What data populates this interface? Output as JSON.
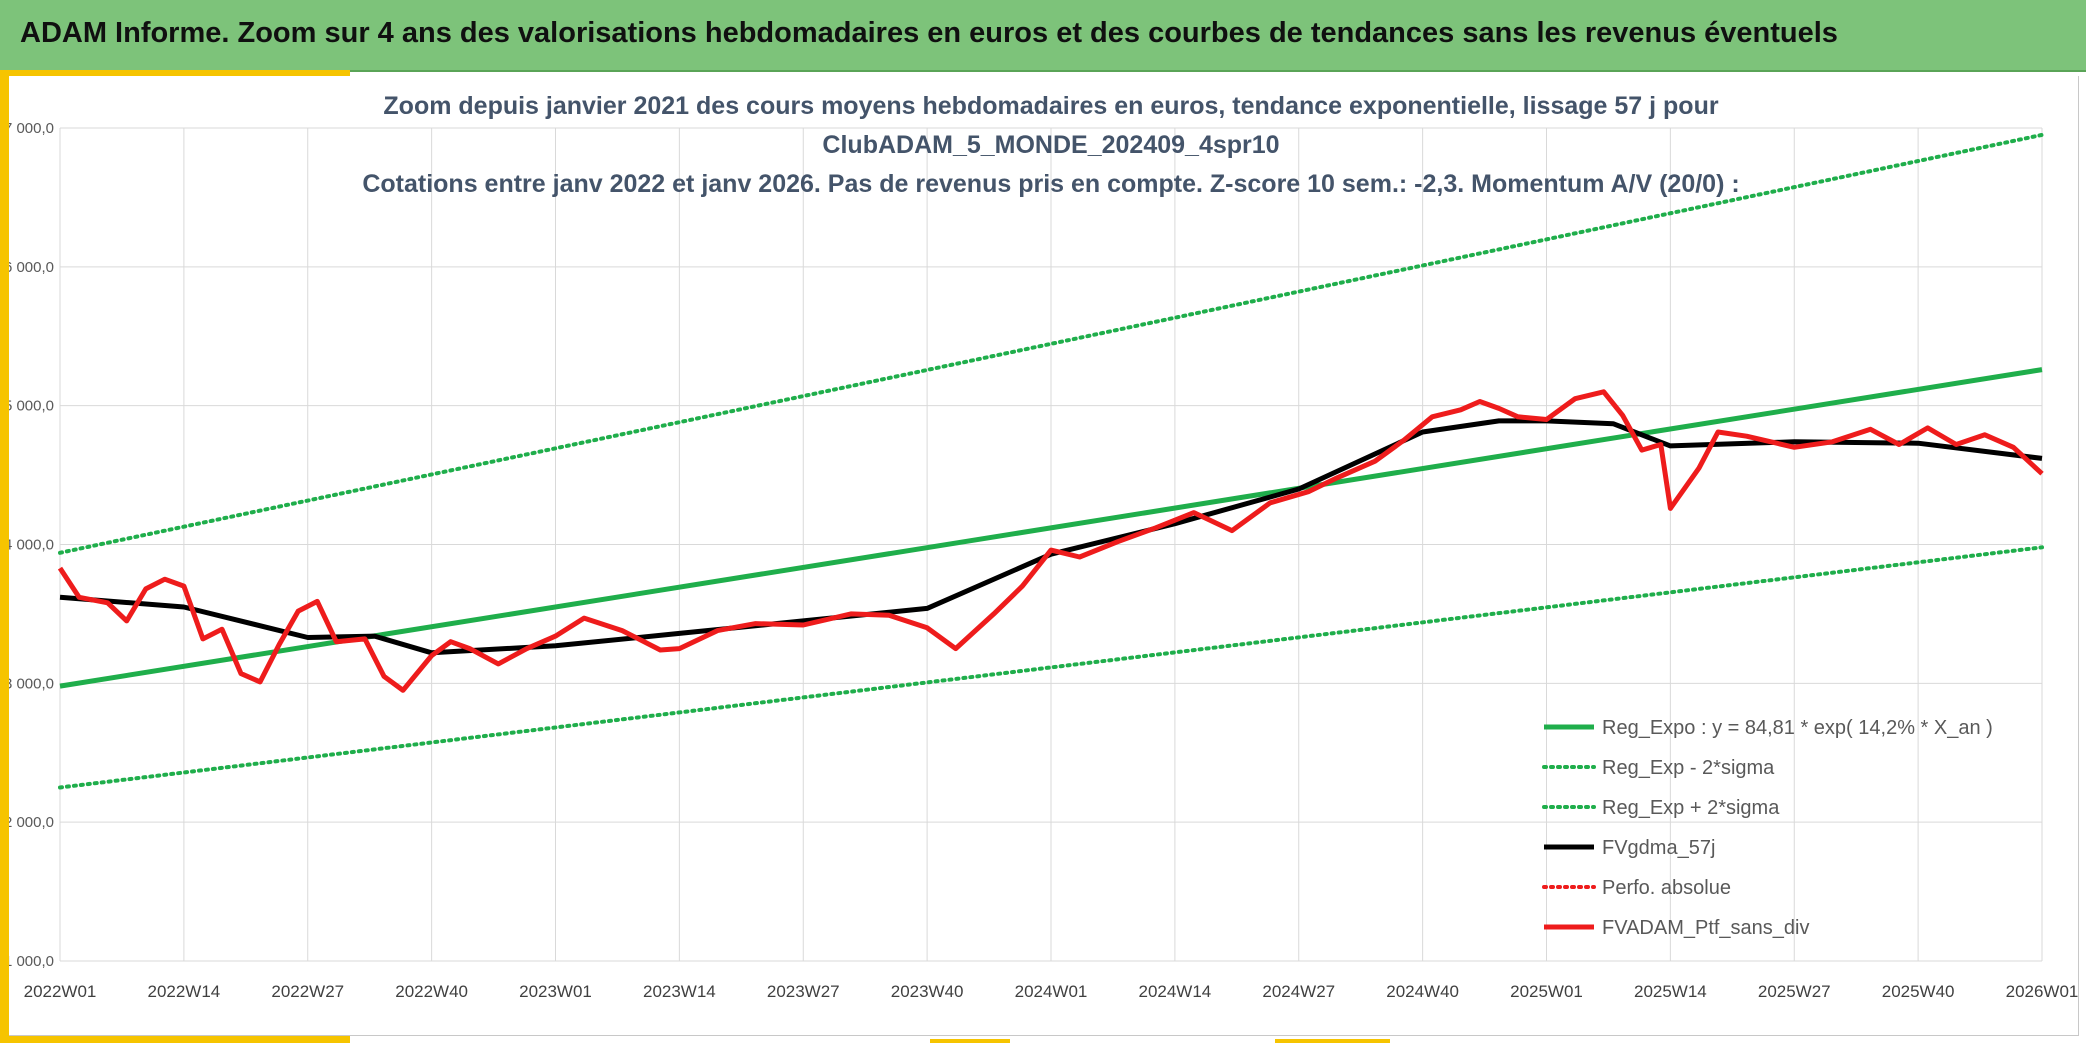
{
  "header": {
    "title": "ADAM Informe. Zoom sur 4 ans des valorisations hebdomadaires en euros et des courbes de tendances sans les revenus éventuels"
  },
  "colors": {
    "banner": "#7dc37a",
    "accent": "#f6c400",
    "trend": "#1fae4b",
    "moving_average": "#000000",
    "portfolio": "#ee1c1c",
    "grid": "#d9d9d9"
  },
  "chart_data": {
    "type": "line",
    "title_lines": [
      "Zoom depuis janvier 2021 des cours moyens hebdomadaires en euros, tendance exponentielle, lissage 57 j pour",
      "ClubADAM_5_MONDE_202409_4spr10",
      "Cotations entre janv 2022 et janv 2026. Pas de revenus pris en compte. Z-score 10 sem.: -2,3. Momentum A/V (20/0) :"
    ],
    "xlabel": "",
    "ylabel": "",
    "x_tick_labels": [
      "2022W01",
      "2022W14",
      "2022W27",
      "2022W40",
      "2023W01",
      "2023W14",
      "2023W27",
      "2023W40",
      "2024W01",
      "2024W14",
      "2024W27",
      "2024W40",
      "2025W01",
      "2025W14",
      "2025W27",
      "2025W40",
      "2026W01"
    ],
    "y_ticks": [
      1000,
      2000,
      3000,
      4000,
      5000,
      6000,
      7000
    ],
    "y_tick_labels": [
      "1 000,0",
      "2 000,0",
      "3 000,0",
      "4 000,0",
      "5 000,0",
      "6 000,0",
      "7 000,0"
    ],
    "ylim": [
      1000,
      7000
    ],
    "grid": true,
    "legend_position": "bottom-right",
    "series": [
      {
        "name": "Reg_Expo : y = 84,81 * exp( 14,2% *  X_an )",
        "style": "solid",
        "color": "#1fae4b",
        "x": [
          "2022W01",
          "2026W01"
        ],
        "y": [
          2980,
          5260
        ]
      },
      {
        "name": "Reg_Exp - 2*sigma",
        "style": "dotted",
        "color": "#1fae4b",
        "x": [
          "2022W01",
          "2026W01"
        ],
        "y": [
          2250,
          3980
        ]
      },
      {
        "name": "Reg_Exp + 2*sigma",
        "style": "dotted",
        "color": "#1fae4b",
        "x": [
          "2022W01",
          "2026W01"
        ],
        "y": [
          3940,
          6950
        ]
      },
      {
        "name": "FVgdma_57j",
        "style": "solid",
        "color": "#000000",
        "x": [
          "2022W01",
          "2022W14",
          "2022W27",
          "2022W34",
          "2022W40",
          "2023W01",
          "2023W14",
          "2023W27",
          "2023W40",
          "2024W01",
          "2024W14",
          "2024W27",
          "2024W40",
          "2024W48",
          "2025W01",
          "2025W08",
          "2025W14",
          "2025W27",
          "2025W40",
          "2026W01"
        ],
        "y": [
          3620,
          3550,
          3330,
          3340,
          3220,
          3270,
          3360,
          3450,
          3540,
          3930,
          4150,
          4400,
          4810,
          4890,
          4890,
          4870,
          4710,
          4740,
          4730,
          4620
        ]
      },
      {
        "name": "Perfo. absolue",
        "style": "dotted",
        "color": "#ee1c1c",
        "x": [],
        "y": []
      },
      {
        "name": "FVADAM_Ptf_sans_div",
        "style": "solid",
        "color": "#ee1c1c",
        "x": [
          "2022W01",
          "2022W03",
          "2022W06",
          "2022W08",
          "2022W10",
          "2022W12",
          "2022W14",
          "2022W16",
          "2022W18",
          "2022W20",
          "2022W22",
          "2022W24",
          "2022W26",
          "2022W28",
          "2022W30",
          "2022W33",
          "2022W35",
          "2022W37",
          "2022W40",
          "2022W42",
          "2022W44",
          "2022W47",
          "2022W50",
          "2023W01",
          "2023W04",
          "2023W08",
          "2023W12",
          "2023W14",
          "2023W18",
          "2023W22",
          "2023W27",
          "2023W32",
          "2023W36",
          "2023W40",
          "2023W43",
          "2023W47",
          "2023W50",
          "2024W01",
          "2024W04",
          "2024W08",
          "2024W12",
          "2024W16",
          "2024W20",
          "2024W24",
          "2024W28",
          "2024W31",
          "2024W35",
          "2024W38",
          "2024W41",
          "2024W44",
          "2024W46",
          "2024W48",
          "2024W50",
          "2025W01",
          "2025W04",
          "2025W07",
          "2025W09",
          "2025W11",
          "2025W13",
          "2025W14",
          "2025W17",
          "2025W19",
          "2025W22",
          "2025W27",
          "2025W31",
          "2025W35",
          "2025W38",
          "2025W41",
          "2025W44",
          "2025W47",
          "2025W50",
          "2026W01"
        ],
        "y": [
          3830,
          3620,
          3580,
          3450,
          3680,
          3750,
          3700,
          3320,
          3390,
          3070,
          3010,
          3280,
          3520,
          3590,
          3300,
          3320,
          3050,
          2950,
          3200,
          3300,
          3250,
          3140,
          3250,
          3340,
          3470,
          3380,
          3240,
          3250,
          3380,
          3430,
          3420,
          3500,
          3490,
          3400,
          3250,
          3500,
          3700,
          3960,
          3910,
          4020,
          4120,
          4230,
          4100,
          4300,
          4380,
          4480,
          4600,
          4750,
          4920,
          4970,
          5030,
          4980,
          4920,
          4900,
          5050,
          5100,
          4930,
          4680,
          4720,
          4260,
          4550,
          4810,
          4780,
          4700,
          4740,
          4830,
          4720,
          4840,
          4720,
          4790,
          4700,
          4510
        ]
      }
    ]
  }
}
